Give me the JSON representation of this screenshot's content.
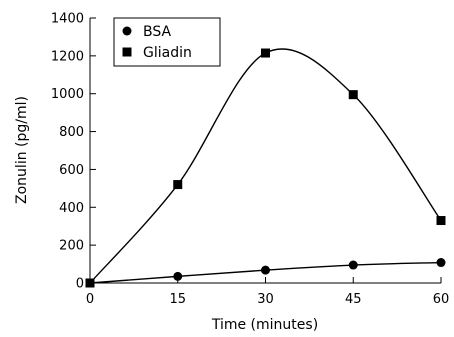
{
  "chart_data": {
    "type": "line",
    "xlabel": "Time (minutes)",
    "ylabel": "Zonulin (pg/ml)",
    "x": [
      0,
      15,
      30,
      45,
      60
    ],
    "xlim": [
      0,
      60
    ],
    "ylim": [
      0,
      1400
    ],
    "xticks": [
      "0",
      "15",
      "30",
      "45",
      "60"
    ],
    "yticks": [
      "0",
      "200",
      "400",
      "600",
      "800",
      "1000",
      "1200",
      "1400"
    ],
    "grid": false,
    "legend_position": "top-left",
    "series": [
      {
        "name": "BSA",
        "marker": "circle",
        "color": "#000000",
        "values": [
          0,
          35,
          68,
          95,
          108
        ]
      },
      {
        "name": "Gliadin",
        "marker": "square",
        "color": "#000000",
        "values": [
          0,
          520,
          1215,
          995,
          330
        ]
      }
    ]
  }
}
